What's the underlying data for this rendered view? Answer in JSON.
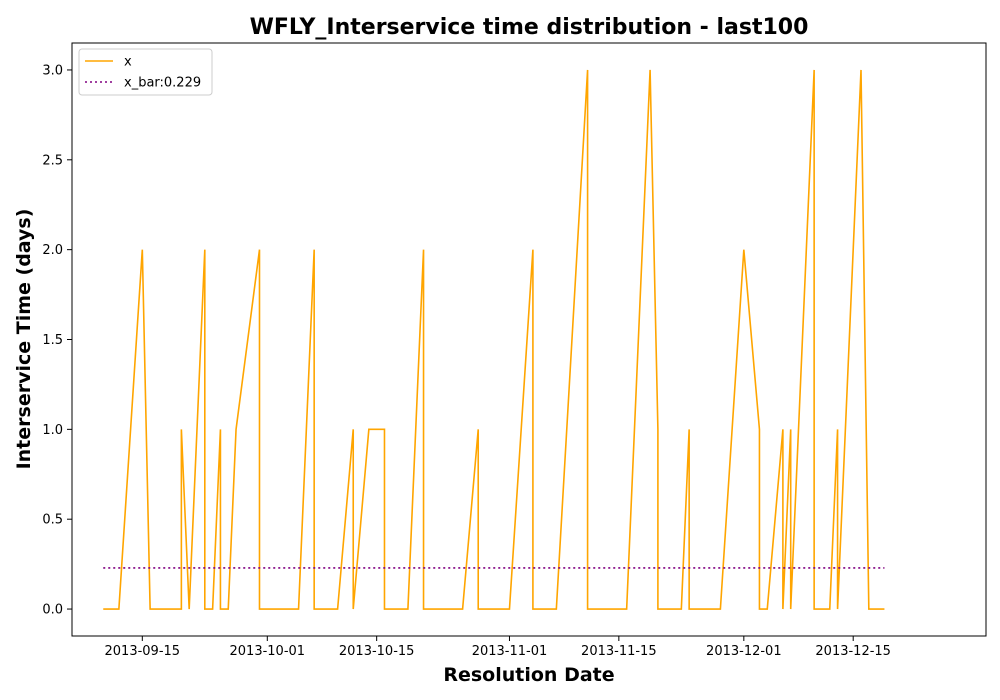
{
  "chart_data": {
    "type": "line",
    "title": "WFLY_Interservice time distribution - last100",
    "xlabel": "Resolution Date",
    "ylabel": "Interservice Time (days)",
    "ylim": [
      -0.15,
      3.15
    ],
    "xlim": [
      "2013-09-06",
      "2014-01-01"
    ],
    "x_ticks": [
      "2013-09-15",
      "2013-10-01",
      "2013-10-15",
      "2013-11-01",
      "2013-11-15",
      "2013-12-01",
      "2013-12-15"
    ],
    "y_ticks": [
      "0.0",
      "0.5",
      "1.0",
      "1.5",
      "2.0",
      "2.5",
      "3.0"
    ],
    "grid": false,
    "legend_position": "top-left",
    "series": [
      {
        "name": "x",
        "color": "#ffa500",
        "style": "solid",
        "points": [
          [
            "2013-09-10",
            0
          ],
          [
            "2013-09-12",
            0
          ],
          [
            "2013-09-15",
            2
          ],
          [
            "2013-09-16",
            0
          ],
          [
            "2013-09-20",
            0
          ],
          [
            "2013-09-20",
            1
          ],
          [
            "2013-09-21",
            0
          ],
          [
            "2013-09-23",
            2
          ],
          [
            "2013-09-23",
            0
          ],
          [
            "2013-09-24",
            0
          ],
          [
            "2013-09-25",
            1
          ],
          [
            "2013-09-25",
            0
          ],
          [
            "2013-09-26",
            0
          ],
          [
            "2013-09-27",
            1
          ],
          [
            "2013-09-30",
            2
          ],
          [
            "2013-09-30",
            0
          ],
          [
            "2013-10-05",
            0
          ],
          [
            "2013-10-07",
            2
          ],
          [
            "2013-10-07",
            0
          ],
          [
            "2013-10-10",
            0
          ],
          [
            "2013-10-12",
            1
          ],
          [
            "2013-10-12",
            0
          ],
          [
            "2013-10-14",
            1
          ],
          [
            "2013-10-16",
            1
          ],
          [
            "2013-10-16",
            0
          ],
          [
            "2013-10-19",
            0
          ],
          [
            "2013-10-21",
            2
          ],
          [
            "2013-10-21",
            0
          ],
          [
            "2013-10-26",
            0
          ],
          [
            "2013-10-28",
            1
          ],
          [
            "2013-10-28",
            0
          ],
          [
            "2013-11-01",
            0
          ],
          [
            "2013-11-04",
            2
          ],
          [
            "2013-11-04",
            0
          ],
          [
            "2013-11-07",
            0
          ],
          [
            "2013-11-11",
            3
          ],
          [
            "2013-11-11",
            0
          ],
          [
            "2013-11-16",
            0
          ],
          [
            "2013-11-19",
            3
          ],
          [
            "2013-11-20",
            1
          ],
          [
            "2013-11-20",
            0
          ],
          [
            "2013-11-23",
            0
          ],
          [
            "2013-11-24",
            1
          ],
          [
            "2013-11-24",
            0
          ],
          [
            "2013-11-28",
            0
          ],
          [
            "2013-12-01",
            2
          ],
          [
            "2013-12-03",
            1
          ],
          [
            "2013-12-03",
            0
          ],
          [
            "2013-12-04",
            0
          ],
          [
            "2013-12-06",
            1
          ],
          [
            "2013-12-06",
            0
          ],
          [
            "2013-12-07",
            1
          ],
          [
            "2013-12-07",
            0
          ],
          [
            "2013-12-10",
            3
          ],
          [
            "2013-12-10",
            0
          ],
          [
            "2013-12-12",
            0
          ],
          [
            "2013-12-13",
            1
          ],
          [
            "2013-12-13",
            0
          ],
          [
            "2013-12-16",
            3
          ],
          [
            "2013-12-17",
            0
          ],
          [
            "2013-12-19",
            0
          ]
        ]
      },
      {
        "name": "x_bar:0.229",
        "color": "#800080",
        "style": "dotted",
        "points": [
          [
            "2013-09-10",
            0.229
          ],
          [
            "2013-12-19",
            0.229
          ]
        ]
      }
    ]
  }
}
